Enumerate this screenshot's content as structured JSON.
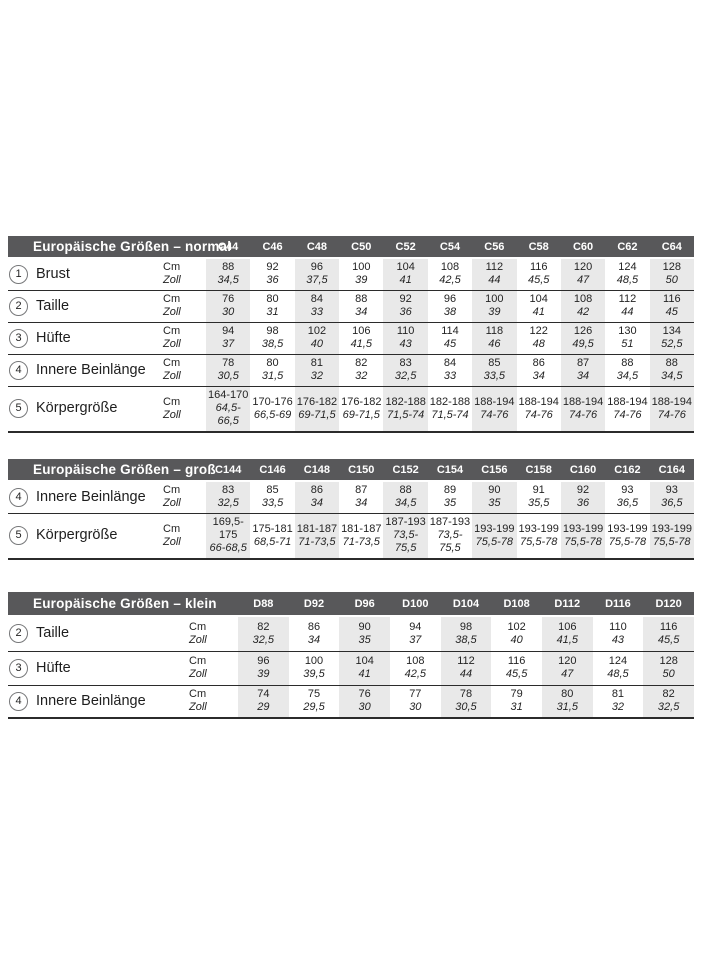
{
  "page": {
    "background": "#ffffff"
  },
  "colors": {
    "header_bg": "#58585a",
    "header_text": "#ffffff",
    "column_stripe": "#e9e9e9",
    "rule": "#2b2b2b",
    "text": "#242424",
    "circle_border": "#77787a"
  },
  "units": {
    "cm": "Cm",
    "zoll": "Zoll"
  },
  "tables": [
    {
      "key": "normal",
      "title": "Europäische Größen – normal",
      "columns": [
        "C44",
        "C46",
        "C48",
        "C50",
        "C52",
        "C54",
        "C56",
        "C58",
        "C60",
        "C62",
        "C64"
      ],
      "rows": [
        {
          "num": "1",
          "label": "Brust",
          "cm": [
            "88",
            "92",
            "96",
            "100",
            "104",
            "108",
            "112",
            "116",
            "120",
            "124",
            "128"
          ],
          "zoll": [
            "34,5",
            "36",
            "37,5",
            "39",
            "41",
            "42,5",
            "44",
            "45,5",
            "47",
            "48,5",
            "50"
          ]
        },
        {
          "num": "2",
          "label": "Taille",
          "cm": [
            "76",
            "80",
            "84",
            "88",
            "92",
            "96",
            "100",
            "104",
            "108",
            "112",
            "116"
          ],
          "zoll": [
            "30",
            "31",
            "33",
            "34",
            "36",
            "38",
            "39",
            "41",
            "42",
            "44",
            "45"
          ]
        },
        {
          "num": "3",
          "label": "Hüfte",
          "cm": [
            "94",
            "98",
            "102",
            "106",
            "110",
            "114",
            "118",
            "122",
            "126",
            "130",
            "134"
          ],
          "zoll": [
            "37",
            "38,5",
            "40",
            "41,5",
            "43",
            "45",
            "46",
            "48",
            "49,5",
            "51",
            "52,5"
          ]
        },
        {
          "num": "4",
          "label": "Innere Beinlänge",
          "cm": [
            "78",
            "80",
            "81",
            "82",
            "83",
            "84",
            "85",
            "86",
            "87",
            "88",
            "88"
          ],
          "zoll": [
            "30,5",
            "31,5",
            "32",
            "32",
            "32,5",
            "33",
            "33,5",
            "34",
            "34",
            "34,5",
            "34,5"
          ]
        },
        {
          "num": "5",
          "label": "Körpergröße",
          "cm": [
            "164-170",
            "170-176",
            "176-182",
            "176-182",
            "182-188",
            "182-188",
            "188-194",
            "188-194",
            "188-194",
            "188-194",
            "188-194"
          ],
          "zoll": [
            "64,5-66,5",
            "66,5-69",
            "69-71,5",
            "69-71,5",
            "71,5-74",
            "71,5-74",
            "74-76",
            "74-76",
            "74-76",
            "74-76",
            "74-76"
          ]
        }
      ]
    },
    {
      "key": "gross",
      "title": "Europäische Größen – groß",
      "columns": [
        "C144",
        "C146",
        "C148",
        "C150",
        "C152",
        "C154",
        "C156",
        "C158",
        "C160",
        "C162",
        "C164"
      ],
      "rows": [
        {
          "num": "4",
          "label": "Innere Beinlänge",
          "cm": [
            "83",
            "85",
            "86",
            "87",
            "88",
            "89",
            "90",
            "91",
            "92",
            "93",
            "93"
          ],
          "zoll": [
            "32,5",
            "33,5",
            "34",
            "34",
            "34,5",
            "35",
            "35",
            "35,5",
            "36",
            "36,5",
            "36,5"
          ]
        },
        {
          "num": "5",
          "label": "Körpergröße",
          "cm": [
            "169,5-175",
            "175-181",
            "181-187",
            "181-187",
            "187-193",
            "187-193",
            "193-199",
            "193-199",
            "193-199",
            "193-199",
            "193-199"
          ],
          "zoll": [
            "66-68,5",
            "68,5-71",
            "71-73,5",
            "71-73,5",
            "73,5-75,5",
            "73,5-75,5",
            "75,5-78",
            "75,5-78",
            "75,5-78",
            "75,5-78",
            "75,5-78"
          ]
        }
      ]
    },
    {
      "key": "klein",
      "title": "Europäische Größen – klein",
      "columns": [
        "D88",
        "D92",
        "D96",
        "D100",
        "D104",
        "D108",
        "D112",
        "D116",
        "D120"
      ],
      "rows": [
        {
          "num": "2",
          "label": "Taille",
          "cm": [
            "82",
            "86",
            "90",
            "94",
            "98",
            "102",
            "106",
            "110",
            "116"
          ],
          "zoll": [
            "32,5",
            "34",
            "35",
            "37",
            "38,5",
            "40",
            "41,5",
            "43",
            "45,5"
          ]
        },
        {
          "num": "3",
          "label": "Hüfte",
          "cm": [
            "96",
            "100",
            "104",
            "108",
            "112",
            "116",
            "120",
            "124",
            "128"
          ],
          "zoll": [
            "39",
            "39,5",
            "41",
            "42,5",
            "44",
            "45,5",
            "47",
            "48,5",
            "50"
          ]
        },
        {
          "num": "4",
          "label": "Innere Beinlänge",
          "cm": [
            "74",
            "75",
            "76",
            "77",
            "78",
            "79",
            "80",
            "81",
            "82"
          ],
          "zoll": [
            "29",
            "29,5",
            "30",
            "30",
            "30,5",
            "31",
            "31,5",
            "32",
            "32,5"
          ]
        }
      ]
    }
  ]
}
